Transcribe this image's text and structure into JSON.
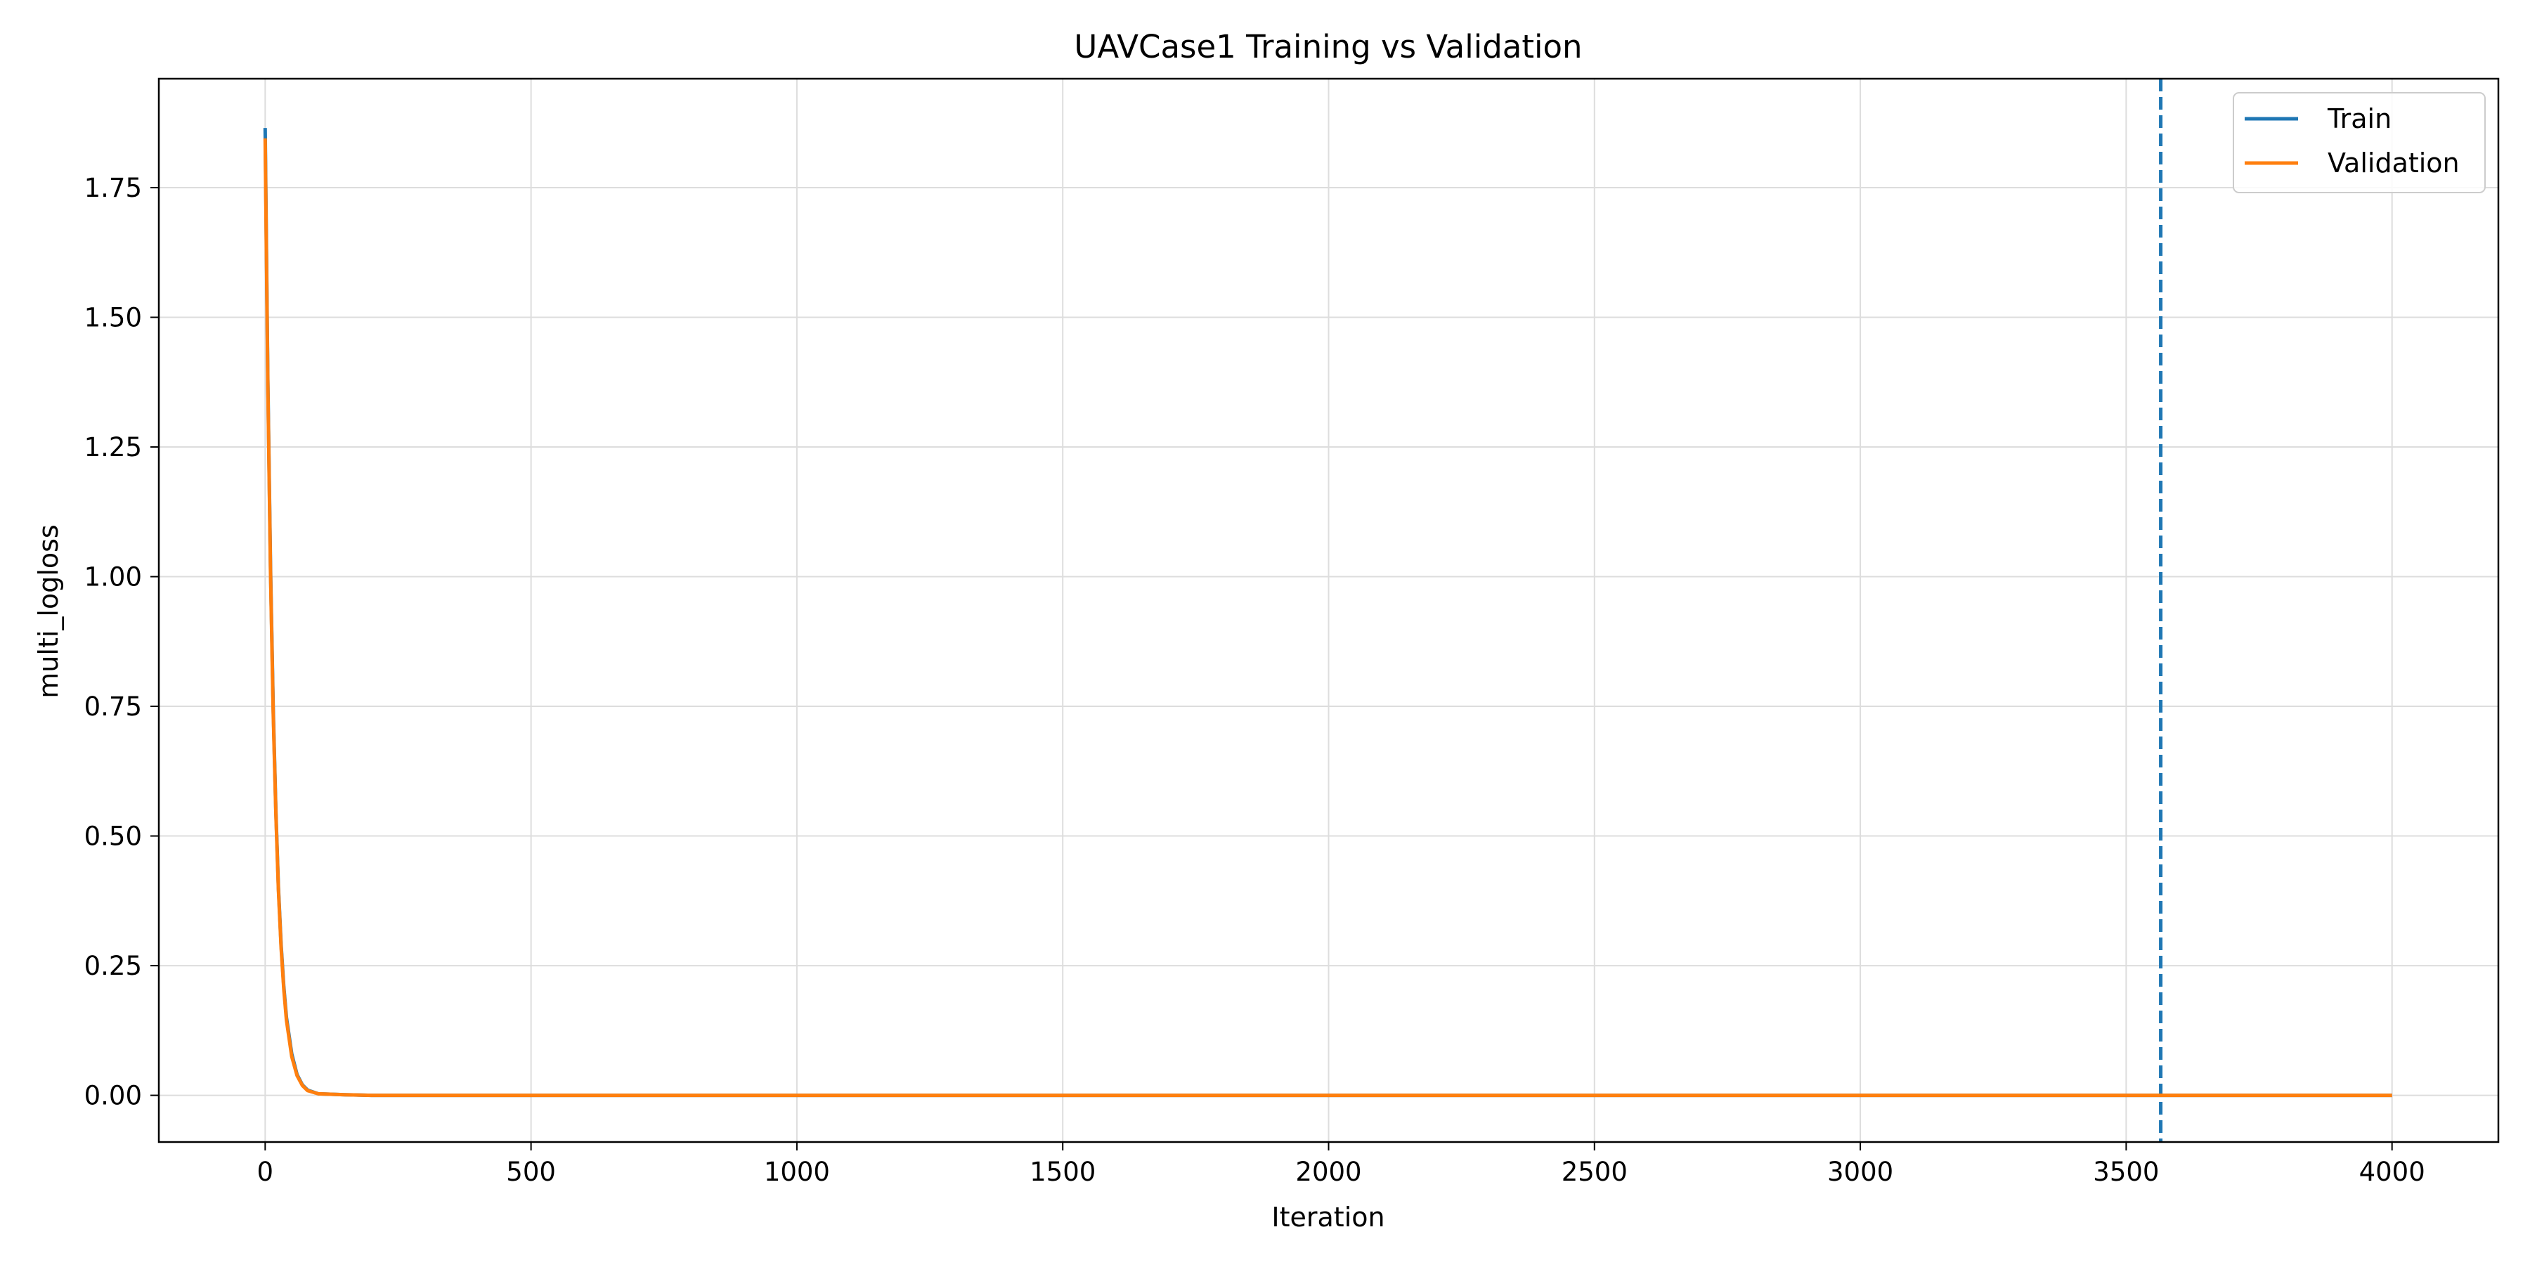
{
  "chart_data": {
    "type": "line",
    "title": "UAVCase1 Training vs Validation",
    "xlabel": "Iteration",
    "ylabel": "multi_logloss",
    "xlim": [
      -200,
      4200
    ],
    "ylim": [
      -0.09,
      1.96
    ],
    "x_ticks": [
      0,
      500,
      1000,
      1500,
      2000,
      2500,
      3000,
      3500,
      4000
    ],
    "y_ticks": [
      0.0,
      0.25,
      0.5,
      0.75,
      1.0,
      1.25,
      1.5,
      1.75
    ],
    "y_tick_labels": [
      "0.00",
      "0.25",
      "0.50",
      "0.75",
      "1.00",
      "1.25",
      "1.50",
      "1.75"
    ],
    "grid": true,
    "legend_position": "top-right",
    "best_iteration_marker": {
      "x": 3565,
      "style": "dashed",
      "color": "#1f77b4"
    },
    "series": [
      {
        "name": "Train",
        "color": "#1f77b4",
        "x": [
          0,
          5,
          10,
          15,
          20,
          25,
          30,
          35,
          40,
          50,
          60,
          70,
          80,
          100,
          150,
          200,
          500,
          1000,
          2000,
          3000,
          4000
        ],
        "y": [
          1.865,
          1.38,
          1.02,
          0.75,
          0.55,
          0.4,
          0.29,
          0.21,
          0.15,
          0.08,
          0.04,
          0.02,
          0.01,
          0.003,
          0.001,
          0.0,
          0.0,
          0.0,
          0.0,
          0.0,
          0.0
        ]
      },
      {
        "name": "Validation",
        "color": "#ff7f0e",
        "x": [
          0,
          5,
          10,
          15,
          20,
          25,
          30,
          35,
          40,
          50,
          60,
          70,
          80,
          100,
          150,
          200,
          500,
          1000,
          2000,
          3000,
          4000
        ],
        "y": [
          1.845,
          1.37,
          1.01,
          0.74,
          0.545,
          0.395,
          0.285,
          0.205,
          0.145,
          0.075,
          0.038,
          0.019,
          0.009,
          0.003,
          0.001,
          0.0,
          0.0,
          0.0,
          0.0,
          0.0,
          0.0
        ]
      }
    ]
  }
}
